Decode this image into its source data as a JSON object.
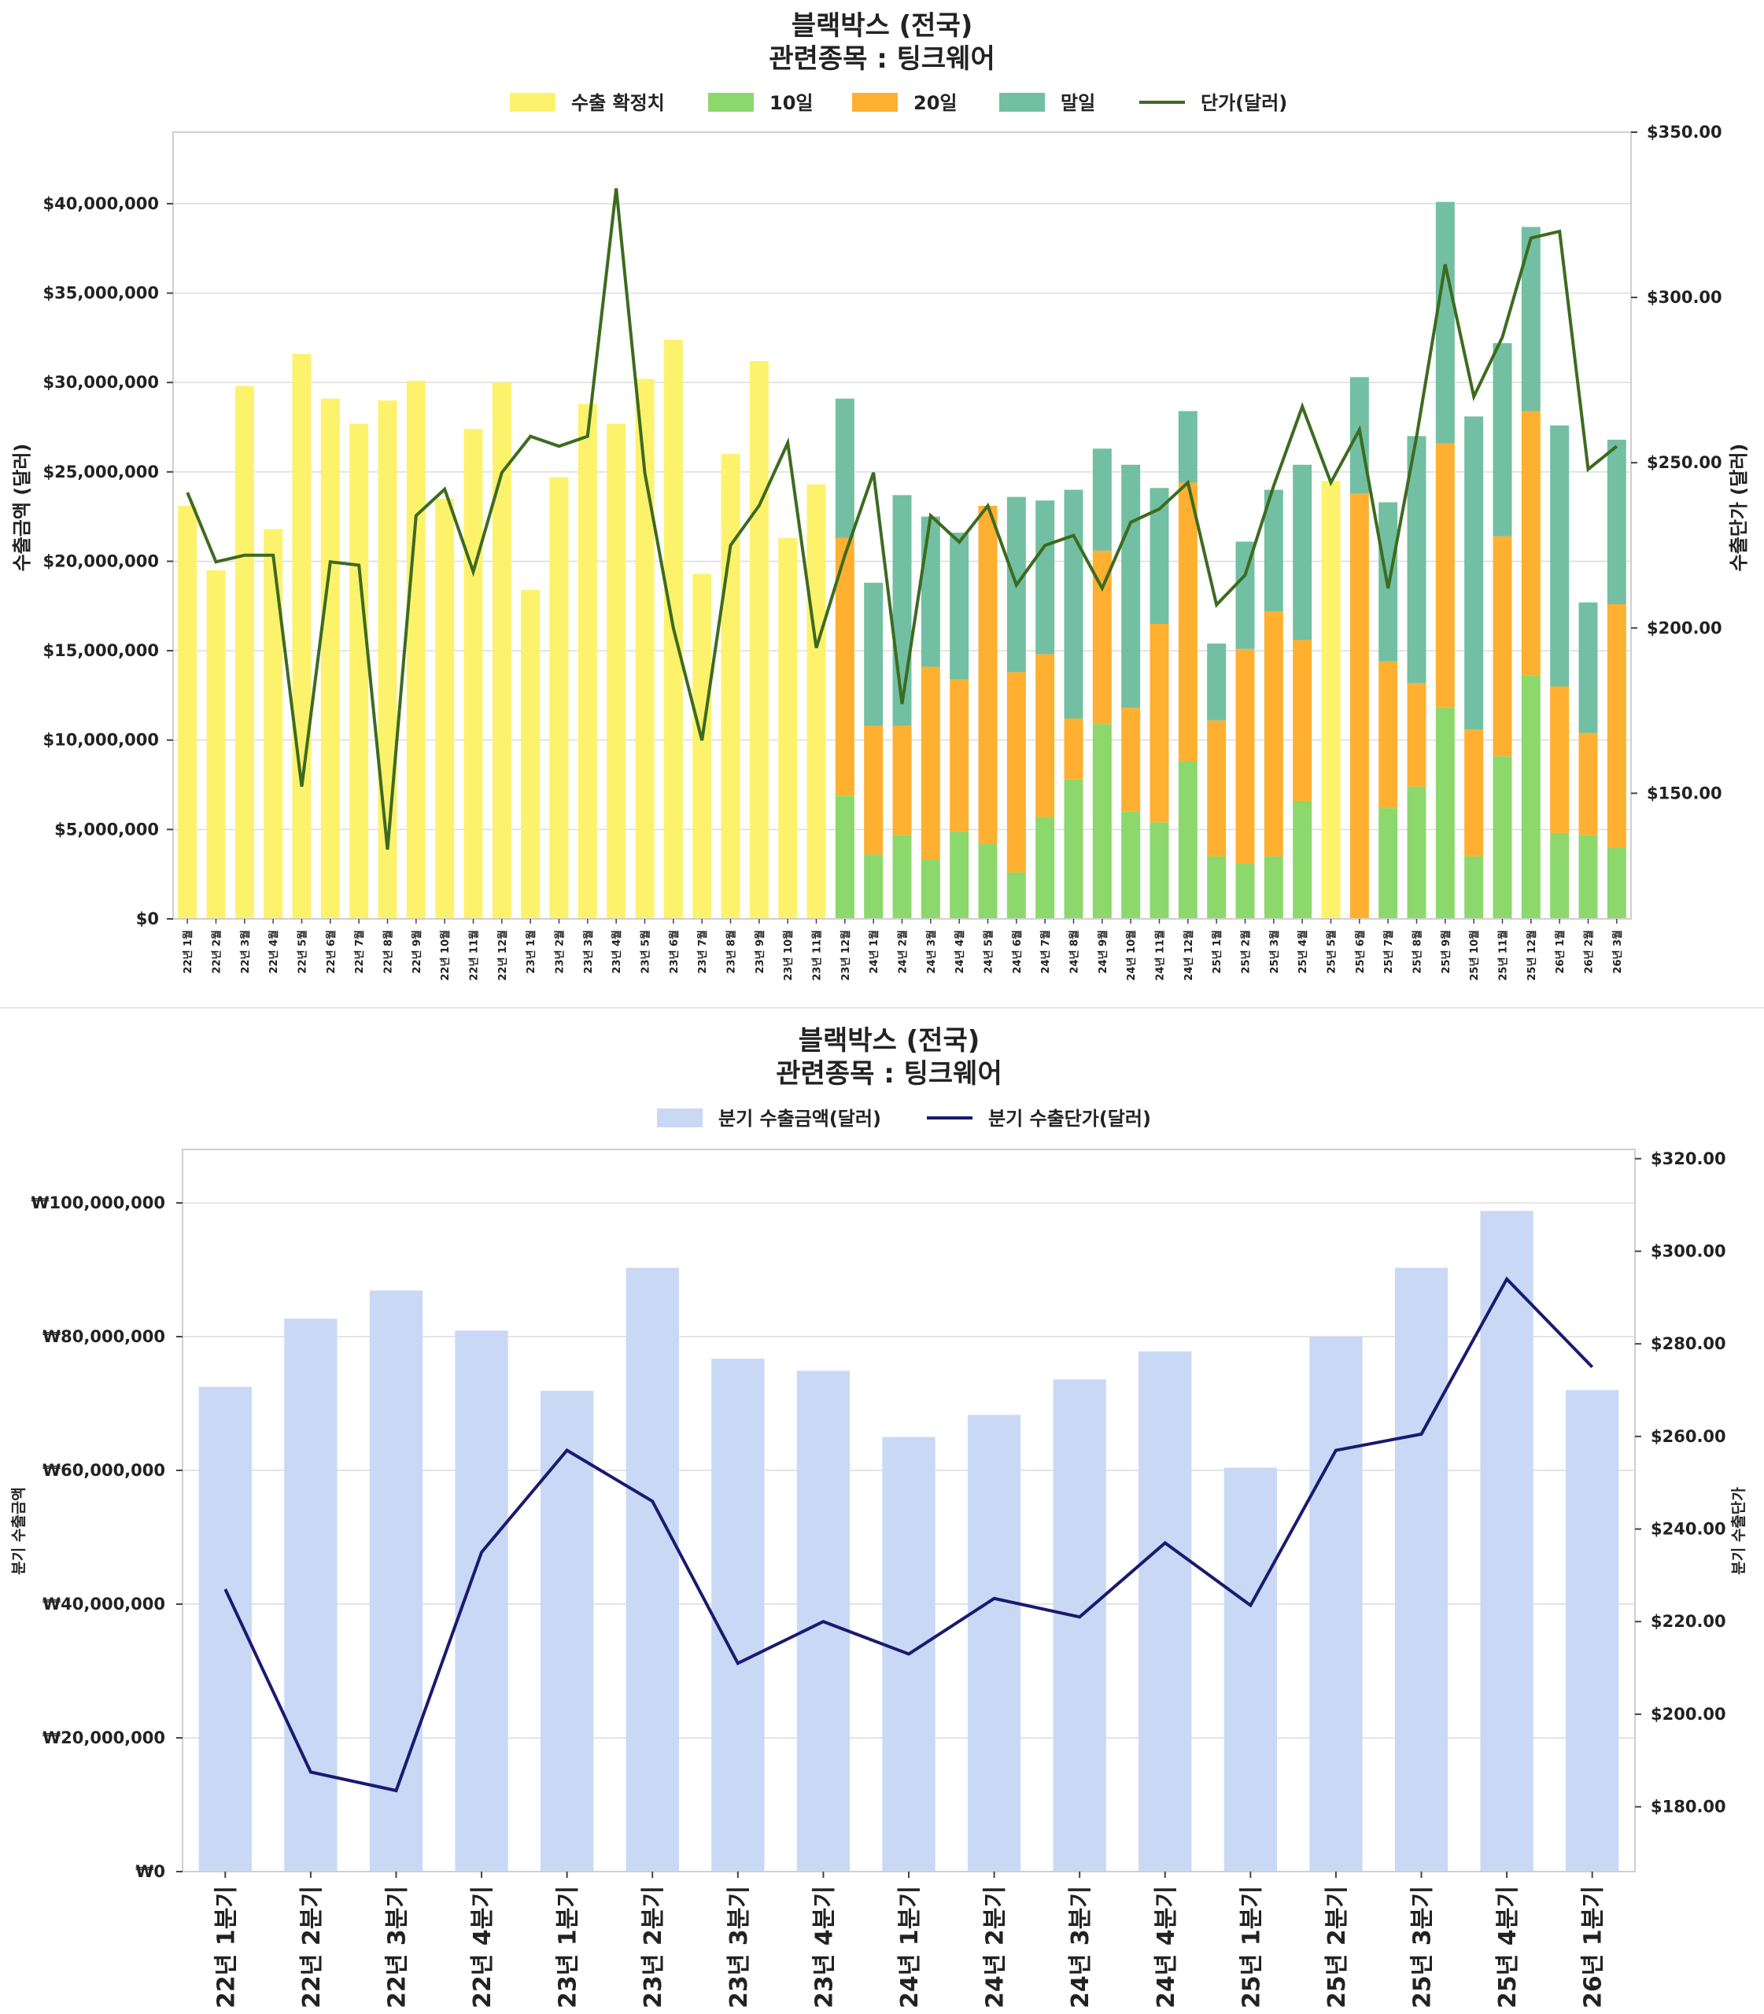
{
  "chart_data": [
    {
      "type": "bar",
      "title_line1": "블랙박스 (전국)",
      "title_line2": "관련종목 : 팅크웨어",
      "ylabel": "수출금액 (달러)",
      "ylabel_right": "수출단가 (달러)",
      "ylim": [
        0,
        44000000
      ],
      "ylim_right": [
        112,
        350
      ],
      "yticks": [
        0,
        5000000,
        10000000,
        15000000,
        20000000,
        25000000,
        30000000,
        35000000,
        40000000
      ],
      "ytick_labels": [
        "$0",
        "$5,000,000",
        "$10,000,000",
        "$15,000,000",
        "$20,000,000",
        "$25,000,000",
        "$30,000,000",
        "$35,000,000",
        "$40,000,000"
      ],
      "yticks_right": [
        150,
        200,
        250,
        300,
        350
      ],
      "ytick_labels_right": [
        "$150.00",
        "$200.00",
        "$250.00",
        "$300.00",
        "$350.00"
      ],
      "legend": [
        "수출 확정치",
        "10일",
        "20일",
        "말일",
        "단가(달러)"
      ],
      "colors": {
        "confirmed": "#fdf26c",
        "d10": "#8dd86c",
        "d20": "#ffb030",
        "end": "#73bfa3",
        "line": "#3d6b1f"
      },
      "categories": [
        "22년 1월",
        "22년 2월",
        "22년 3월",
        "22년 4월",
        "22년 5월",
        "22년 6월",
        "22년 7월",
        "22년 8월",
        "22년 9월",
        "22년 10월",
        "22년 11월",
        "22년 12월",
        "23년 1월",
        "23년 2월",
        "23년 3월",
        "23년 4월",
        "23년 5월",
        "23년 6월",
        "23년 7월",
        "23년 8월",
        "23년 9월",
        "23년 10월",
        "23년 11월",
        "23년 12월",
        "24년 1월",
        "24년 2월",
        "24년 3월",
        "24년 4월",
        "24년 5월",
        "24년 6월",
        "24년 7월",
        "24년 8월",
        "24년 9월",
        "24년 10월",
        "24년 11월",
        "24년 12월",
        "25년 1월",
        "25년 2월",
        "25년 3월",
        "25년 4월",
        "25년 5월",
        "25년 6월",
        "25년 7월",
        "25년 8월",
        "25년 9월",
        "25년 10월",
        "25년 11월",
        "25년 12월",
        "26년 1월",
        "26년 2월",
        "26년 3월"
      ],
      "confirmed": [
        23100000,
        19500000,
        29800000,
        21800000,
        31600000,
        29100000,
        27700000,
        29000000,
        30100000,
        23500000,
        27400000,
        30000000,
        18400000,
        24700000,
        28800000,
        27700000,
        30200000,
        32400000,
        19300000,
        26000000,
        31200000,
        21300000,
        24300000,
        0,
        0,
        0,
        0,
        0,
        0,
        0,
        0,
        0,
        0,
        0,
        0,
        0,
        0,
        0,
        0,
        0,
        24500000,
        0,
        0,
        0,
        0,
        0,
        0,
        0,
        0,
        0,
        0
      ],
      "d10": [
        0,
        0,
        0,
        0,
        0,
        0,
        0,
        0,
        0,
        0,
        0,
        0,
        0,
        0,
        0,
        0,
        0,
        0,
        0,
        0,
        0,
        0,
        0,
        6900000,
        3600000,
        4700000,
        3300000,
        4900000,
        4200000,
        2600000,
        5700000,
        7800000,
        10900000,
        6000000,
        5400000,
        8800000,
        3500000,
        3100000,
        3500000,
        6600000,
        0,
        0,
        6200000,
        7400000,
        11800000,
        3500000,
        9100000,
        13600000,
        4800000,
        4700000,
        4000000
      ],
      "d20": [
        0,
        0,
        0,
        0,
        0,
        0,
        0,
        0,
        0,
        0,
        0,
        0,
        0,
        0,
        0,
        0,
        0,
        0,
        0,
        0,
        0,
        0,
        0,
        14400000,
        7200000,
        6100000,
        10800000,
        8500000,
        18900000,
        11200000,
        9100000,
        3400000,
        9700000,
        5800000,
        11100000,
        15600000,
        7600000,
        12000000,
        13700000,
        9000000,
        0,
        23800000,
        8200000,
        5800000,
        14800000,
        7100000,
        12300000,
        14800000,
        8200000,
        5700000,
        13600000
      ],
      "end": [
        0,
        0,
        0,
        0,
        0,
        0,
        0,
        0,
        0,
        0,
        0,
        0,
        0,
        0,
        0,
        0,
        0,
        0,
        0,
        0,
        0,
        0,
        0,
        7800000,
        8000000,
        12900000,
        8400000,
        8200000,
        0,
        9800000,
        8600000,
        12800000,
        5700000,
        13600000,
        7600000,
        4000000,
        4300000,
        6000000,
        6800000,
        9800000,
        0,
        6500000,
        8900000,
        13800000,
        13500000,
        17500000,
        10800000,
        10300000,
        14600000,
        7300000,
        9200000
      ],
      "unit_price": [
        241,
        220,
        222,
        222,
        152,
        220,
        219,
        133,
        234,
        242,
        217,
        247,
        258,
        255,
        258,
        333,
        247,
        200,
        166,
        225,
        237,
        256,
        194,
        222,
        247,
        177,
        234,
        226,
        237,
        213,
        225,
        228,
        212,
        232,
        236,
        244,
        207,
        216,
        243,
        267,
        244,
        260,
        212,
        258,
        310,
        270,
        288,
        318,
        320,
        248,
        255
      ]
    },
    {
      "type": "bar",
      "title_line1": "블랙박스 (전국)",
      "title_line2": "관련종목 : 팅크웨어",
      "ylabel": "분기 수출금액",
      "ylabel_right": "분기 수출단가",
      "ylim": [
        0,
        108000000
      ],
      "ylim_right": [
        166,
        322
      ],
      "yticks": [
        0,
        20000000,
        40000000,
        60000000,
        80000000,
        100000000
      ],
      "ytick_labels": [
        "₩0",
        "₩20,000,000",
        "₩40,000,000",
        "₩60,000,000",
        "₩80,000,000",
        "₩100,000,000"
      ],
      "yticks_right": [
        180,
        200,
        220,
        240,
        260,
        280,
        300,
        320
      ],
      "ytick_labels_right": [
        "$180.00",
        "$200.00",
        "$220.00",
        "$240.00",
        "$260.00",
        "$280.00",
        "$300.00",
        "$320.00"
      ],
      "legend": [
        "분기 수출금액(달러)",
        "분기 수출단가(달러)"
      ],
      "colors": {
        "bar": "#c9d9f5",
        "line": "#1a1a70"
      },
      "categories": [
        "22년 1분기",
        "22년 2분기",
        "22년 3분기",
        "22년 4분기",
        "23년 1분기",
        "23년 2분기",
        "23년 3분기",
        "23년 4분기",
        "24년 1분기",
        "24년 2분기",
        "24년 3분기",
        "24년 4분기",
        "25년 1분기",
        "25년 2분기",
        "25년 3분기",
        "25년 4분기",
        "26년 1분기"
      ],
      "values": [
        72500000,
        82700000,
        86900000,
        80900000,
        71900000,
        90300000,
        76700000,
        74900000,
        65000000,
        68300000,
        73600000,
        77800000,
        60400000,
        80000000,
        90300000,
        98800000,
        72000000
      ],
      "unit_price": [
        227,
        187.5,
        183.5,
        235,
        257,
        246,
        211,
        220,
        213,
        225,
        221,
        237,
        223.5,
        257,
        260.5,
        294,
        275
      ]
    }
  ]
}
